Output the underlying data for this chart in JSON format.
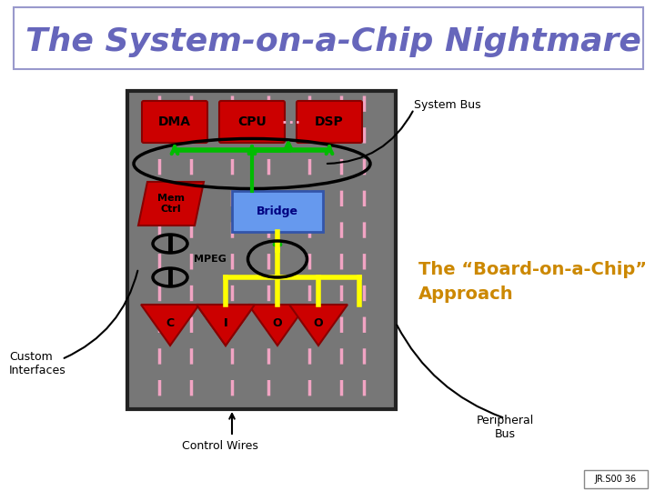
{
  "title": "The System-on-a-Chip Nightmare",
  "title_color": "#6666bb",
  "title_fontsize": 26,
  "bg_color": "#ffffff",
  "chip_bg": "#777777",
  "chip_border": "#222222",
  "red_block": "#cc0000",
  "blue_block": "#6699ee",
  "orange_text": "#cc8800",
  "green_color": "#00bb00",
  "yellow_color": "#ffff00",
  "pink_dashed": "#ffaacc",
  "subtitle_right": "The “Board-on-a-Chip”\nApproach",
  "system_bus_label": "System Bus",
  "control_wires_label": "Control Wires",
  "peripheral_bus_label": "Peripheral\nBus",
  "custom_interfaces_label": "Custom\nInterfaces",
  "jr_label": "JR.S00 36"
}
